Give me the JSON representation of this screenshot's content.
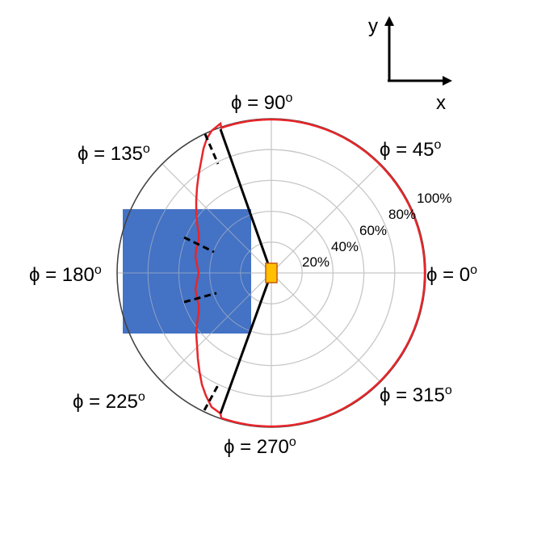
{
  "axes_indicator": {
    "x_label": "x",
    "y_label": "y"
  },
  "polar": {
    "rings": [
      "20%",
      "40%",
      "60%",
      "80%",
      "100%"
    ],
    "angles": [
      {
        "deg": 0,
        "label": "ϕ = 0",
        "sup": "o"
      },
      {
        "deg": 45,
        "label": "ϕ = 45",
        "sup": "o"
      },
      {
        "deg": 90,
        "label": "ϕ = 90",
        "sup": "o"
      },
      {
        "deg": 135,
        "label": "ϕ = 135",
        "sup": "o"
      },
      {
        "deg": 180,
        "label": "ϕ = 180",
        "sup": "o"
      },
      {
        "deg": 225,
        "label": "ϕ = 225",
        "sup": "o"
      },
      {
        "deg": 270,
        "label": "ϕ = 270",
        "sup": "o"
      },
      {
        "deg": 315,
        "label": "ϕ = 315",
        "sup": "o"
      }
    ]
  },
  "colors": {
    "pattern": "#e8262a",
    "grid": "#c8c8c8",
    "outer_circle": "#404040",
    "blocker": "#4472c4",
    "source": "#ffc000",
    "source_stroke": "#c55a11",
    "lines": "#000000"
  }
}
